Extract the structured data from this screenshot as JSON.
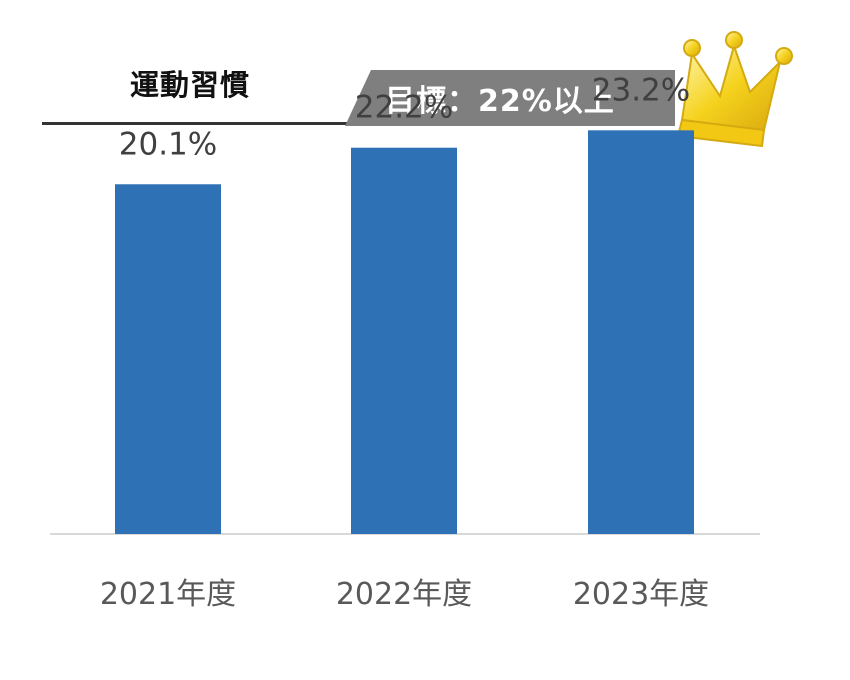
{
  "header": {
    "title": "運動習慣",
    "goal": "目標：22%以上"
  },
  "colors": {
    "bar": "#2e71b4",
    "goal_box": "#7f7f7f",
    "crown": "#f5d21d"
  },
  "icons": {
    "crown": "crown-icon"
  },
  "chart_data": {
    "type": "bar",
    "title": "運動習慣",
    "categories": [
      "2021年度",
      "2022年度",
      "2023年度"
    ],
    "values": [
      20.1,
      22.2,
      23.2
    ],
    "value_labels": [
      "20.1%",
      "22.2%",
      "23.2%"
    ],
    "xlabel": "",
    "ylabel": "",
    "ylim": [
      0,
      25
    ],
    "grid": false,
    "legend": "none"
  }
}
